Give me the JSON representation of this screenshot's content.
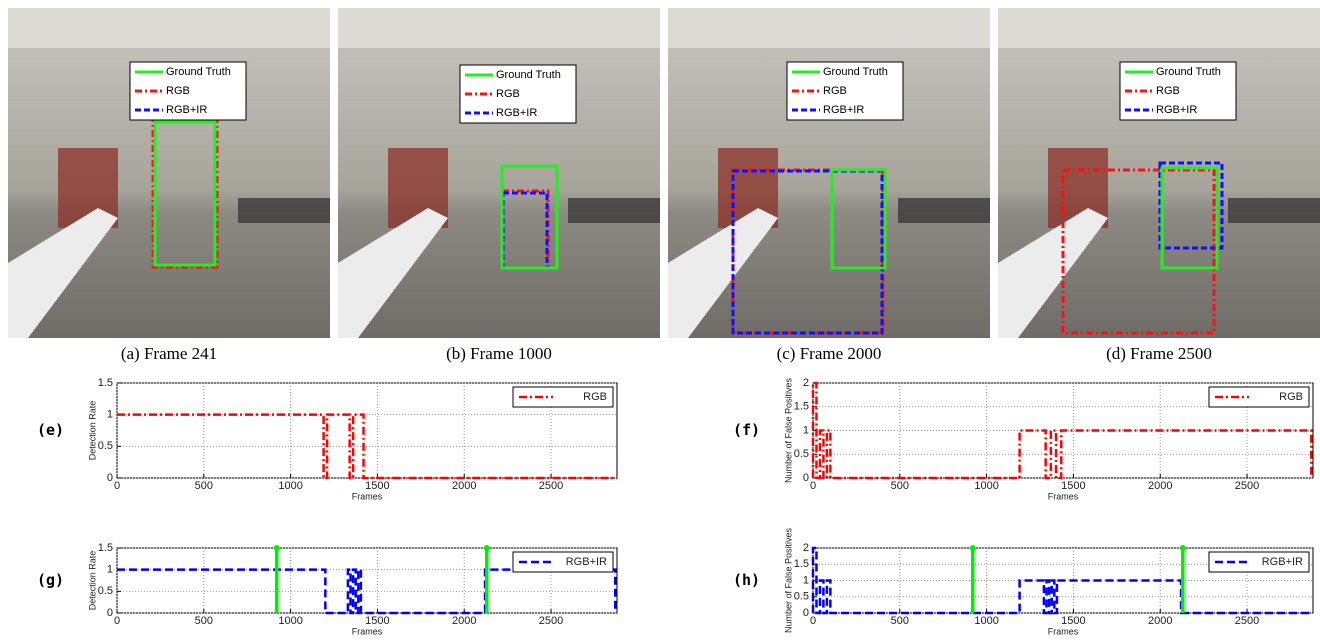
{
  "frames": [
    {
      "caption": "(a) Frame 241",
      "legend": [
        "Ground Truth",
        "RGB",
        "RGB+IR"
      ]
    },
    {
      "caption": "(b) Frame 1000",
      "legend": [
        "Ground Truth",
        "RGB",
        "RGB+IR"
      ]
    },
    {
      "caption": "(c) Frame 2000",
      "legend": [
        "Ground Truth",
        "RGB",
        "RGB+IR"
      ]
    },
    {
      "caption": "(d) Frame 2500",
      "legend": [
        "Ground Truth",
        "RGB",
        "RGB+IR"
      ]
    }
  ],
  "chart_data": [
    {
      "type": "line",
      "panel_label": "(e)",
      "xlabel": "Frames",
      "ylabel": "Detection Rate",
      "xlim": [
        0,
        2880
      ],
      "xticks": [
        0,
        500,
        1000,
        1500,
        2000,
        2500
      ],
      "ylim": [
        0,
        1.5
      ],
      "yticks": [
        0,
        0.5,
        1,
        1.5
      ],
      "grid": true,
      "legend": "upper right",
      "series": [
        {
          "name": "RGB",
          "color": "#ff0000",
          "linestyle": "dash-dot",
          "x": [
            0,
            1190,
            1190,
            1210,
            1210,
            1340,
            1340,
            1360,
            1360,
            1420,
            1420,
            2880
          ],
          "values": [
            1,
            1,
            0,
            0,
            1,
            1,
            0,
            0,
            1,
            1,
            0,
            0
          ]
        }
      ]
    },
    {
      "type": "line",
      "panel_label": "(f)",
      "xlabel": "Frames",
      "ylabel": "Number of False Positives",
      "xlim": [
        0,
        2880
      ],
      "xticks": [
        0,
        500,
        1000,
        1500,
        2000,
        2500
      ],
      "ylim": [
        0,
        2
      ],
      "yticks": [
        0,
        0.5,
        1,
        1.5,
        2
      ],
      "grid": true,
      "legend": "upper right",
      "series": [
        {
          "name": "RGB",
          "color": "#ff0000",
          "linestyle": "dash-dot",
          "x": [
            0,
            0,
            20,
            20,
            40,
            40,
            60,
            60,
            80,
            80,
            100,
            100,
            1190,
            1190,
            1340,
            1340,
            1370,
            1370,
            1400,
            1400,
            1430,
            1430,
            2870,
            2870
          ],
          "values": [
            0,
            2,
            2,
            0,
            0,
            1,
            1,
            0,
            0,
            1,
            1,
            0,
            0,
            1,
            1,
            0,
            0,
            1,
            1,
            0,
            0,
            1,
            1,
            0
          ]
        }
      ]
    },
    {
      "type": "line",
      "panel_label": "(g)",
      "xlabel": "Frames",
      "ylabel": "Detection Rate",
      "xlim": [
        0,
        2880
      ],
      "xticks": [
        0,
        500,
        1000,
        1500,
        2000,
        2500
      ],
      "ylim": [
        0,
        1.5
      ],
      "yticks": [
        0,
        0.5,
        1,
        1.5
      ],
      "grid": true,
      "legend": "upper right",
      "markers": {
        "color": "#00ee00",
        "x": [
          920,
          2130
        ]
      },
      "series": [
        {
          "name": "RGB+IR",
          "color": "#0000ff",
          "linestyle": "dashed",
          "x": [
            0,
            1200,
            1200,
            1330,
            1330,
            1345,
            1345,
            1360,
            1360,
            1375,
            1375,
            1390,
            1390,
            1405,
            1405,
            2120,
            2120,
            2870,
            2870
          ],
          "values": [
            1,
            1,
            0,
            0,
            1,
            1,
            0,
            0,
            1,
            1,
            0,
            0,
            1,
            1,
            0,
            0,
            1,
            1,
            0
          ]
        }
      ]
    },
    {
      "type": "line",
      "panel_label": "(h)",
      "xlabel": "Frames",
      "ylabel": "Number of False Positives",
      "xlim": [
        0,
        2880
      ],
      "xticks": [
        0,
        500,
        1000,
        1500,
        2000,
        2500
      ],
      "ylim": [
        0,
        2
      ],
      "yticks": [
        0,
        0.5,
        1,
        1.5,
        2
      ],
      "grid": true,
      "legend": "upper right",
      "markers": {
        "color": "#00ee00",
        "x": [
          920,
          2130
        ]
      },
      "series": [
        {
          "name": "RGB+IR",
          "color": "#0000ff",
          "linestyle": "dashed",
          "x": [
            0,
            0,
            20,
            20,
            40,
            40,
            60,
            60,
            80,
            80,
            100,
            100,
            1190,
            1190,
            1330,
            1330,
            1345,
            1345,
            1360,
            1360,
            1375,
            1375,
            1390,
            1390,
            1405,
            1405,
            2120,
            2120,
            2880
          ],
          "values": [
            0,
            2,
            2,
            0,
            0,
            1,
            1,
            0,
            0,
            1,
            1,
            0,
            0,
            1,
            1,
            0,
            0,
            1,
            1,
            0,
            0,
            1,
            1,
            0,
            0,
            1,
            1,
            0,
            0
          ]
        }
      ]
    }
  ]
}
